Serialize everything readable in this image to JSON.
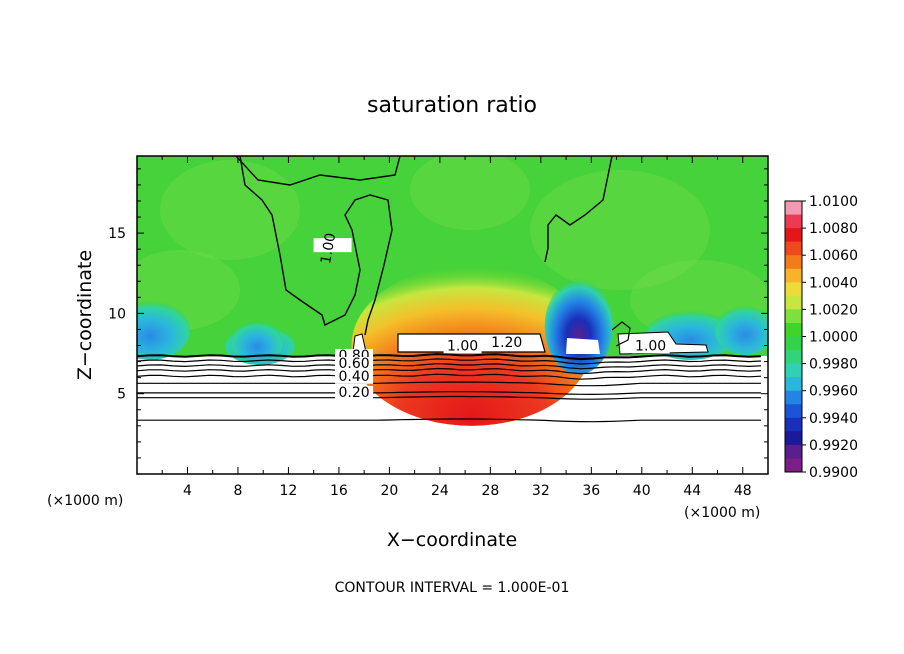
{
  "chart_data": {
    "type": "contour",
    "title": "saturation ratio",
    "xlabel": "X−coordinate",
    "ylabel": "Z−coordinate",
    "x_unit_left": "(×1000 m)",
    "x_unit_right": "(×1000 m)",
    "xlim": [
      0,
      50
    ],
    "ylim": [
      0,
      19.8
    ],
    "x_ticks": [
      4,
      8,
      12,
      16,
      20,
      24,
      28,
      32,
      36,
      40,
      44,
      48
    ],
    "y_ticks": [
      5,
      10,
      15
    ],
    "footer": "CONTOUR INTERVAL = 1.000E-01",
    "colorbar": {
      "min": 0.99,
      "max": 1.01,
      "tick_labels": [
        "1.0100",
        "1.0080",
        "1.0060",
        "1.0040",
        "1.0020",
        "1.0000",
        "0.9980",
        "0.9960",
        "0.9940",
        "0.9920",
        "0.9900"
      ],
      "colors": [
        "#f29ab0",
        "#ec3a55",
        "#e4161a",
        "#ef4a1c",
        "#f47b1a",
        "#f7b32a",
        "#ecdb38",
        "#c7e640",
        "#7ee03c",
        "#3fd42a",
        "#33d24a",
        "#30d47c",
        "#2fd1b4",
        "#2ab7dc",
        "#2484e6",
        "#1c54d8",
        "#1a2fba",
        "#1b1a9c",
        "#5a1f8c",
        "#7b1e86"
      ]
    },
    "contour_labels": [
      {
        "text": "1.00",
        "x": 15.5,
        "z": 14.0
      },
      {
        "text": "1.20",
        "x": 29.3,
        "z": 7.9
      },
      {
        "text": "1.00",
        "x": 25.8,
        "z": 7.7
      },
      {
        "text": "1.00",
        "x": 40.7,
        "z": 7.7
      },
      {
        "text": "0.80",
        "x": 17.2,
        "z": 7.1
      },
      {
        "text": "0.60",
        "x": 17.2,
        "z": 6.6
      },
      {
        "text": "0.40",
        "x": 17.2,
        "z": 5.8
      },
      {
        "text": "0.20",
        "x": 17.2,
        "z": 4.8
      }
    ],
    "lower_contours_z": [
      7.35,
      7.05,
      6.75,
      6.45,
      6.1,
      5.65,
      5.05,
      4.75,
      3.35
    ],
    "high_region": {
      "center_x": 26.5,
      "center_z": 8.0,
      "radius_x": 9.5,
      "radius_z": 5.0,
      "peak": 1.01
    },
    "low_regions": [
      {
        "center_x": 35.0,
        "center_z": 9.2,
        "min": 0.992
      },
      {
        "center_x": 9.5,
        "center_z": 8.2,
        "min": 0.996
      }
    ]
  }
}
